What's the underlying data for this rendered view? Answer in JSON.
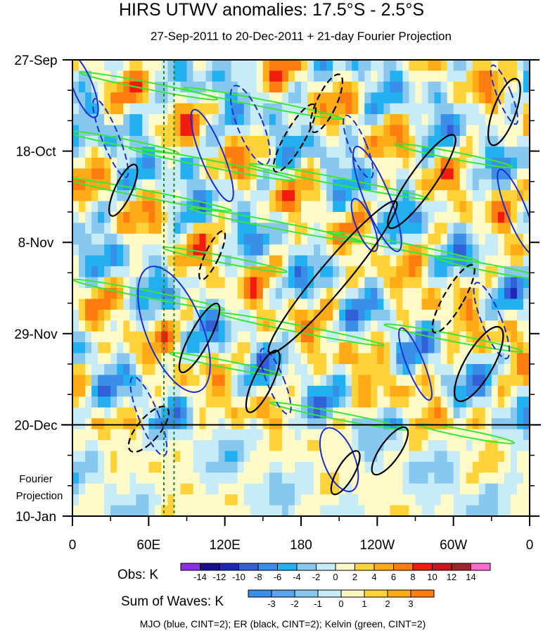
{
  "chart_data": {
    "type": "heatmap",
    "title": "HIRS UTWV anomalies: 17.5°S - 2.5°S",
    "subtitle": "27-Sep-2011 to 20-Dec-2011 + 21-day Fourier Projection",
    "x_tick_labels": [
      "0",
      "60E",
      "120E",
      "180",
      "120W",
      "60W",
      "0"
    ],
    "x_ticks_deg": [
      0,
      60,
      120,
      180,
      240,
      300,
      360
    ],
    "xlim": [
      0,
      360
    ],
    "y_tick_labels": [
      "27-Sep",
      "18-Oct",
      "8-Nov",
      "29-Nov",
      "20-Dec",
      "10-Jan"
    ],
    "y_ticks_day": [
      0,
      21,
      42,
      63,
      84,
      105
    ],
    "ylim": [
      0,
      105
    ],
    "projection_start_day": 84,
    "projection_label_line1": "Fourier",
    "projection_label_line2": "Projection",
    "reference_lines_deg": [
      72,
      80
    ],
    "obs_colorbar": {
      "label": "Obs: K",
      "levels": [
        -14,
        -12,
        -10,
        -8,
        -6,
        -4,
        -2,
        0,
        2,
        4,
        6,
        8,
        10,
        12,
        14
      ],
      "level_labels": [
        "-14",
        "-12",
        "-10",
        "-8",
        "-6",
        "-4",
        "-2",
        "0",
        "2",
        "4",
        "6",
        "8",
        "10",
        "12",
        "14"
      ],
      "colors": [
        "#8c2ee6",
        "#1a0f8c",
        "#1f27b8",
        "#3260d6",
        "#3a8ee8",
        "#22b0f0",
        "#88c8ef",
        "#c7ecf7",
        "#fffbc8",
        "#ffd23a",
        "#ffab18",
        "#ff7d10",
        "#f21c0e",
        "#c8161c",
        "#a0242b",
        "#ff6cd0"
      ]
    },
    "waves_colorbar": {
      "label": "Sum of Waves: K",
      "levels": [
        -3,
        -2,
        -1,
        0,
        1,
        2,
        3
      ],
      "level_labels": [
        "-3",
        "-2",
        "-1",
        "0",
        "1",
        "2",
        "3"
      ],
      "colors": [
        "#3a8ee8",
        "#5aa4ec",
        "#88c8ef",
        "#c7ecf7",
        "#fff6c0",
        "#ffd23a",
        "#ffab18",
        "#ff7d10"
      ]
    },
    "wave_contours": {
      "legend": "MJO (blue, CINT=2); ER (black, CINT=2); Kelvin (green, CINT=2)",
      "series": [
        {
          "name": "MJO",
          "color": "#1a2ed9"
        },
        {
          "name": "ER",
          "color": "#000000"
        },
        {
          "name": "Kelvin",
          "color": "#39e639"
        }
      ]
    }
  }
}
